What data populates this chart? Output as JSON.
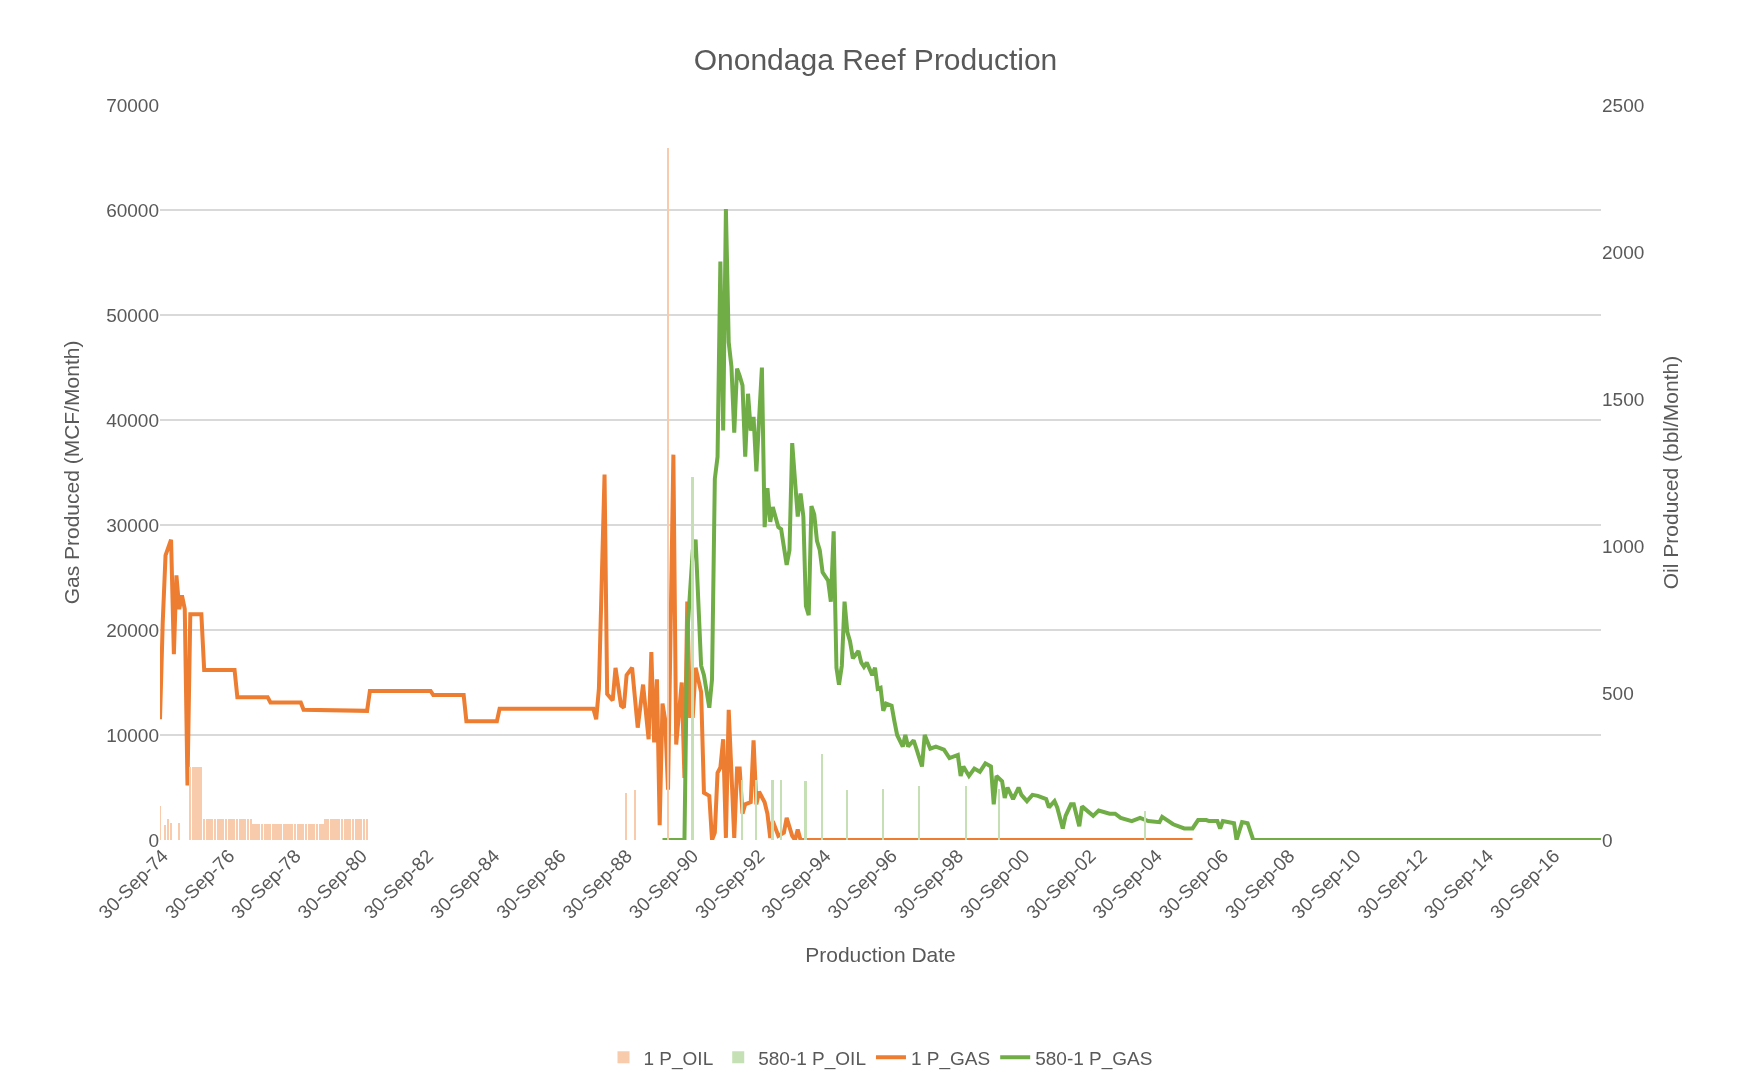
{
  "chart_data": {
    "type": "line",
    "title": "Onondaga Reef Production",
    "xlabel": "Production Date",
    "ylabel": "Gas Produced (MCF/Month)",
    "y2label": "Oil Produced (bbl/Month)",
    "xlim": [
      "1974-09-01",
      "2018-03-01"
    ],
    "xticks": [
      {
        "value": "1974-09-30",
        "label": "30-Sep-74"
      },
      {
        "value": "1976-09-30",
        "label": "30-Sep-76"
      },
      {
        "value": "1978-09-30",
        "label": "30-Sep-78"
      },
      {
        "value": "1980-09-30",
        "label": "30-Sep-80"
      },
      {
        "value": "1982-09-30",
        "label": "30-Sep-82"
      },
      {
        "value": "1984-09-30",
        "label": "30-Sep-84"
      },
      {
        "value": "1986-09-30",
        "label": "30-Sep-86"
      },
      {
        "value": "1988-09-30",
        "label": "30-Sep-88"
      },
      {
        "value": "1990-09-30",
        "label": "30-Sep-90"
      },
      {
        "value": "1992-09-30",
        "label": "30-Sep-92"
      },
      {
        "value": "1994-09-30",
        "label": "30-Sep-94"
      },
      {
        "value": "1996-09-30",
        "label": "30-Sep-96"
      },
      {
        "value": "1998-09-30",
        "label": "30-Sep-98"
      },
      {
        "value": "2000-09-30",
        "label": "30-Sep-00"
      },
      {
        "value": "2002-09-30",
        "label": "30-Sep-02"
      },
      {
        "value": "2004-09-30",
        "label": "30-Sep-04"
      },
      {
        "value": "2006-09-30",
        "label": "30-Sep-06"
      },
      {
        "value": "2008-09-30",
        "label": "30-Sep-08"
      },
      {
        "value": "2010-09-30",
        "label": "30-Sep-10"
      },
      {
        "value": "2012-09-30",
        "label": "30-Sep-12"
      },
      {
        "value": "2014-09-30",
        "label": "30-Sep-14"
      },
      {
        "value": "2016-09-30",
        "label": "30-Sep-16"
      }
    ],
    "ylim": [
      0,
      70000
    ],
    "yticks": [
      0,
      10000,
      20000,
      30000,
      40000,
      50000,
      60000,
      70000
    ],
    "y2lim": [
      0,
      2500
    ],
    "y2ticks": [
      0,
      500,
      1000,
      1500,
      2000,
      2500
    ],
    "grid": "y",
    "legend": "bottom",
    "series": [
      {
        "name": "1 P_OIL",
        "type": "bar",
        "axis": "y2",
        "color": "#f8cbad",
        "x": [
          "1974-09",
          "1974-11",
          "1974-12",
          "1975-01",
          "1975-04",
          "1975-08",
          "1975-09",
          "1975-10",
          "1975-11",
          "1975-12",
          "1976-01",
          "1976-02",
          "1976-03",
          "1976-04",
          "1976-05",
          "1976-06",
          "1976-07",
          "1976-08",
          "1976-09",
          "1976-10",
          "1976-11",
          "1976-12",
          "1977-01",
          "1977-02",
          "1977-03",
          "1977-04",
          "1977-05",
          "1977-06",
          "1977-07",
          "1977-08",
          "1977-09",
          "1977-10",
          "1977-11",
          "1977-12",
          "1978-01",
          "1978-02",
          "1978-03",
          "1978-04",
          "1978-05",
          "1978-06",
          "1978-07",
          "1978-08",
          "1978-09",
          "1978-10",
          "1978-11",
          "1978-12",
          "1979-01",
          "1979-02",
          "1979-03",
          "1979-04",
          "1979-05",
          "1979-06",
          "1979-07",
          "1979-08",
          "1979-09",
          "1979-10",
          "1979-11",
          "1979-12",
          "1980-01",
          "1980-02",
          "1980-03",
          "1980-04",
          "1980-05",
          "1980-06",
          "1980-07",
          "1980-08",
          "1980-09",
          "1980-10",
          "1980-11",
          "1980-12",
          "1988-10",
          "1989-01",
          "1990-01"
        ],
        "values": [
          117,
          52,
          72,
          57,
          58,
          250,
          250,
          250,
          250,
          250,
          72,
          72,
          72,
          72,
          72,
          72,
          72,
          72,
          72,
          72,
          72,
          72,
          72,
          72,
          72,
          72,
          72,
          72,
          53,
          53,
          53,
          53,
          53,
          53,
          53,
          53,
          53,
          53,
          53,
          53,
          53,
          53,
          53,
          53,
          53,
          53,
          53,
          53,
          53,
          53,
          53,
          53,
          53,
          53,
          72,
          72,
          72,
          72,
          72,
          72,
          72,
          72,
          72,
          72,
          72,
          72,
          72,
          72,
          72,
          72,
          161,
          170,
          2355
        ]
      },
      {
        "name": "580-1 P_OIL",
        "type": "bar",
        "axis": "y2",
        "color": "#c5e0b4",
        "x": [
          "1990-10",
          "1992-04",
          "1992-09",
          "1993-03",
          "1993-06",
          "1994-03",
          "1994-09",
          "1995-06",
          "1996-07",
          "1997-08",
          "1999-01",
          "2000-01",
          "2004-06"
        ],
        "values": [
          1235,
          205,
          205,
          205,
          205,
          200,
          292,
          170,
          172,
          184,
          184,
          172,
          100
        ]
      },
      {
        "name": "1 P_GAS",
        "color": "#ed7d31",
        "x": [
          "1974-09",
          "1974-10",
          "1974-11",
          "1975-01",
          "1975-02",
          "1975-03",
          "1975-04",
          "1975-05",
          "1975-06",
          "1975-07",
          "1975-08",
          "1975-12",
          "1976-01",
          "1976-12",
          "1977-01",
          "1977-12",
          "1978-01",
          "1978-12",
          "1979-01",
          "1980-12",
          "1981-01",
          "1982-11",
          "1982-12",
          "1983-11",
          "1983-12",
          "1984-11",
          "1984-12",
          "1987-10",
          "1987-11",
          "1987-12",
          "1988-02",
          "1988-03",
          "1988-05",
          "1988-06",
          "1988-08",
          "1988-09",
          "1988-10",
          "1988-12",
          "1989-02",
          "1989-04",
          "1989-06",
          "1989-07",
          "1989-08",
          "1989-09",
          "1989-10",
          "1989-11",
          "1989-12",
          "1990-01",
          "1990-03",
          "1990-04",
          "1990-06",
          "1990-07",
          "1990-08",
          "1990-09",
          "1990-10",
          "1990-11",
          "1991-01",
          "1991-02",
          "1991-04",
          "1991-05",
          "1991-06",
          "1991-07",
          "1991-08",
          "1991-09",
          "1991-10",
          "1991-11",
          "1992-01",
          "1992-02",
          "1992-03",
          "1992-04",
          "1992-05",
          "1992-07",
          "1992-08",
          "1992-09",
          "1992-10",
          "1992-12",
          "1993-01",
          "1993-02",
          "1993-03",
          "1993-05",
          "1993-07",
          "1993-08",
          "1993-10",
          "1993-11",
          "1993-12",
          "1994-01",
          "2005-11"
        ],
        "values": [
          11500,
          20700,
          27100,
          28600,
          17700,
          25200,
          22000,
          23300,
          22000,
          5200,
          21500,
          21500,
          16200,
          16200,
          13600,
          13600,
          13100,
          13100,
          12400,
          12300,
          14200,
          14200,
          13800,
          13800,
          11300,
          11300,
          12500,
          12500,
          11500,
          14400,
          34800,
          13900,
          13300,
          16400,
          12800,
          12600,
          15700,
          16400,
          10700,
          14800,
          9600,
          17900,
          9300,
          15300,
          1400,
          13000,
          11400,
          4800,
          36700,
          9100,
          15000,
          5900,
          22700,
          11800,
          11800,
          16400,
          14100,
          4500,
          4200,
          0,
          700,
          6400,
          6900,
          9600,
          200,
          12400,
          200,
          6800,
          6800,
          2500,
          3400,
          3600,
          9500,
          3400,
          4600,
          3600,
          2500,
          200,
          1800,
          400,
          700,
          2100,
          400,
          0,
          1000,
          0,
          0
        ]
      },
      {
        "name": "580-1 P_GAS",
        "color": "#70ad47",
        "x": [
          "1989-11",
          "1990-07",
          "1990-08",
          "1990-10",
          "1990-11",
          "1991-01",
          "1991-02",
          "1991-04",
          "1991-05",
          "1991-06",
          "1991-07",
          "1991-08",
          "1991-09",
          "1991-10",
          "1991-11",
          "1991-12",
          "1992-01",
          "1992-02",
          "1992-03",
          "1992-04",
          "1992-05",
          "1992-06",
          "1992-07",
          "1992-08",
          "1992-09",
          "1992-10",
          "1992-11",
          "1992-12",
          "1993-01",
          "1993-02",
          "1993-03",
          "1993-05",
          "1993-06",
          "1993-08",
          "1993-09",
          "1993-10",
          "1993-12",
          "1994-01",
          "1994-02",
          "1994-03",
          "1994-04",
          "1994-05",
          "1994-06",
          "1994-07",
          "1994-08",
          "1994-09",
          "1994-11",
          "1994-12",
          "1995-01",
          "1995-02",
          "1995-03",
          "1995-04",
          "1995-05",
          "1995-06",
          "1995-07",
          "1995-08",
          "1995-10",
          "1995-11",
          "1995-12",
          "1996-01",
          "1996-03",
          "1996-04",
          "1996-05",
          "1996-06",
          "1996-07",
          "1996-08",
          "1996-10",
          "1996-11",
          "1996-12",
          "1997-02",
          "1997-03",
          "1997-04",
          "1997-06",
          "1997-07",
          "1997-09",
          "1997-10",
          "1997-12",
          "1998-02",
          "1998-05",
          "1998-07",
          "1998-10",
          "1998-11",
          "1998-12",
          "1999-02",
          "1999-04",
          "1999-06",
          "1999-08",
          "1999-10",
          "1999-11",
          "1999-12",
          "2000-02",
          "2000-03",
          "2000-04",
          "2000-06",
          "2000-08",
          "2000-09",
          "2000-11",
          "2001-01",
          "2001-03",
          "2001-06",
          "2001-07",
          "2001-09",
          "2001-10",
          "2001-12",
          "2002-01",
          "2002-03",
          "2002-04",
          "2002-06",
          "2002-07",
          "2002-11",
          "2003-01",
          "2003-05",
          "2003-07",
          "2003-09",
          "2004-01",
          "2004-04",
          "2004-07",
          "2004-11",
          "2004-12",
          "2005-04",
          "2005-08",
          "2005-11",
          "2006-01",
          "2006-04",
          "2006-05",
          "2006-08",
          "2006-09",
          "2006-10",
          "2007-02",
          "2007-03",
          "2007-05",
          "2007-07",
          "2007-09",
          "2018-03"
        ],
        "values": [
          0,
          0,
          19600,
          27600,
          28600,
          16600,
          15700,
          12600,
          15300,
          34400,
          36500,
          55100,
          39000,
          60100,
          47400,
          45100,
          38800,
          44900,
          44200,
          43300,
          36500,
          42500,
          39000,
          40300,
          35100,
          40100,
          45000,
          29800,
          33500,
          30300,
          31700,
          29800,
          29600,
          26200,
          27600,
          37800,
          30800,
          33000,
          30800,
          22300,
          21400,
          31800,
          31000,
          28500,
          27600,
          25500,
          24700,
          22700,
          29400,
          16400,
          14800,
          16600,
          22700,
          19800,
          18900,
          17300,
          18000,
          16900,
          16500,
          16900,
          15700,
          16400,
          14400,
          14500,
          12300,
          13000,
          12800,
          11300,
          10000,
          8900,
          10000,
          8900,
          9500,
          8700,
          7000,
          10000,
          8700,
          8900,
          8600,
          7800,
          8100,
          6100,
          7000,
          6100,
          6800,
          6500,
          7300,
          7000,
          3400,
          6100,
          5600,
          4000,
          5000,
          3900,
          5000,
          4300,
          3700,
          4300,
          4200,
          3900,
          3100,
          3700,
          3100,
          1100,
          2300,
          3400,
          3400,
          1300,
          3200,
          2300,
          2800,
          2500,
          2500,
          2100,
          1800,
          2100,
          1800,
          1700,
          2200,
          1500,
          1100,
          1100,
          1900,
          1900,
          1800,
          1800,
          1100,
          1800,
          1600,
          0,
          1700,
          1600,
          0,
          0
        ]
      }
    ]
  }
}
